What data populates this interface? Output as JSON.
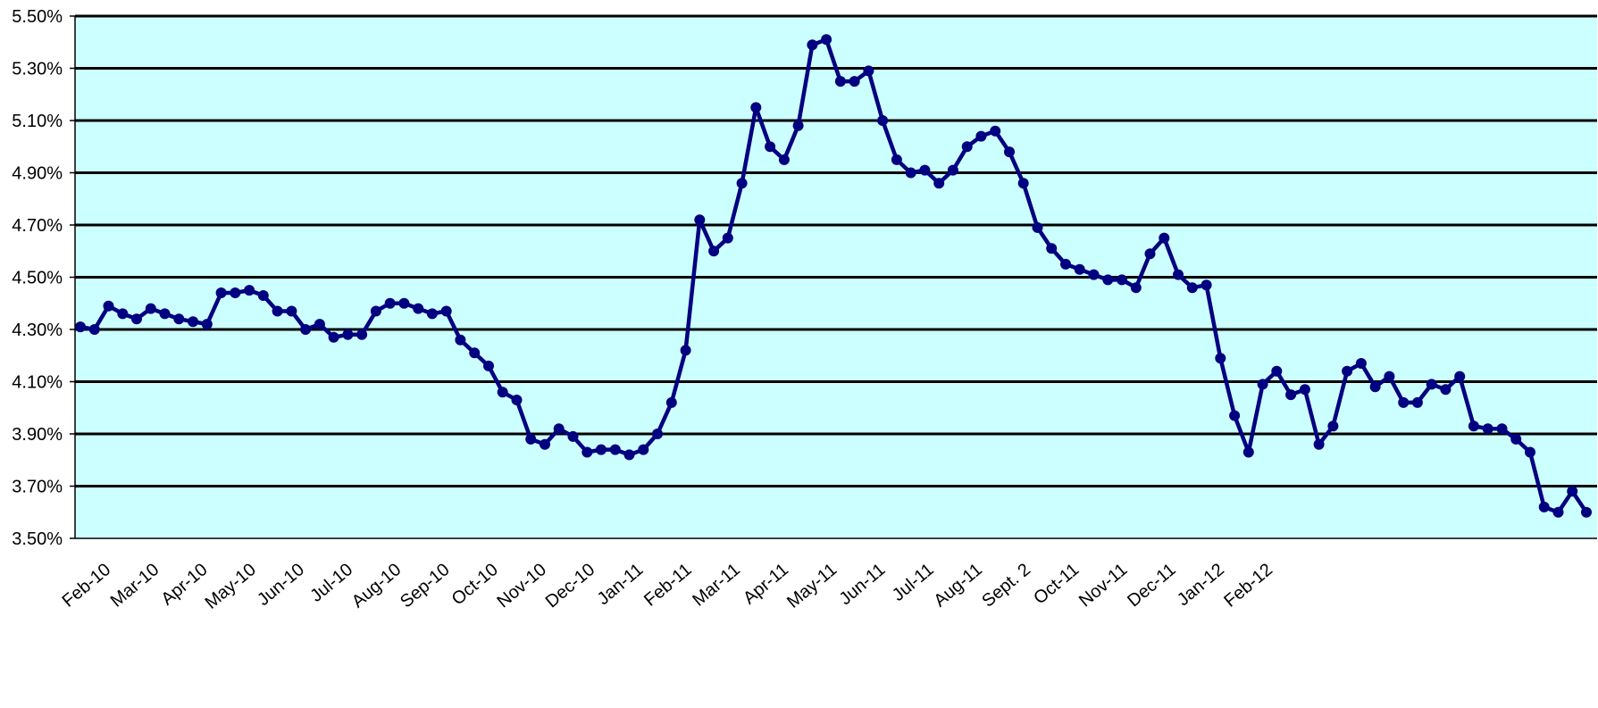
{
  "chart_data": {
    "type": "line",
    "title": "",
    "xlabel": "",
    "ylabel": "",
    "ylim": [
      3.5,
      5.5
    ],
    "y_tick_labels": [
      "5.50%",
      "5.30%",
      "5.10%",
      "4.90%",
      "4.70%",
      "4.50%",
      "4.30%",
      "4.10%",
      "3.90%",
      "3.70%",
      "3.50%"
    ],
    "x_tick_labels": [
      "Feb-10",
      "Mar-10",
      "Apr-10",
      "May-10",
      "Jun-10",
      "Jul-10",
      "Aug-10",
      "Sep-10",
      "Oct-10",
      "Nov-10",
      "Dec-10",
      "Jan-11",
      "Feb-11",
      "Mar-11",
      "Apr-11",
      "May-11",
      "Jun-11",
      "Jul-11",
      "Aug-11",
      "Sept. 2",
      "Oct-11",
      "Nov-11",
      "Dec-11",
      "Jan-12",
      "Feb-12"
    ],
    "grid": "horizontal",
    "plot_background": "#ccffff",
    "series": [
      {
        "color": "#000080",
        "values": [
          4.31,
          4.3,
          4.39,
          4.36,
          4.34,
          4.38,
          4.36,
          4.34,
          4.33,
          4.32,
          4.44,
          4.44,
          4.45,
          4.43,
          4.37,
          4.37,
          4.3,
          4.32,
          4.27,
          4.28,
          4.28,
          4.37,
          4.4,
          4.4,
          4.38,
          4.36,
          4.37,
          4.26,
          4.21,
          4.16,
          4.06,
          4.03,
          3.88,
          3.86,
          3.92,
          3.89,
          3.83,
          3.84,
          3.84,
          3.82,
          3.84,
          3.9,
          4.02,
          4.22,
          4.72,
          4.6,
          4.65,
          4.86,
          5.15,
          5.0,
          4.95,
          5.08,
          5.39,
          5.41,
          5.25,
          5.25,
          5.29,
          5.1,
          4.95,
          4.9,
          4.91,
          4.86,
          4.91,
          5.0,
          5.04,
          5.06,
          4.98,
          4.86,
          4.69,
          4.61,
          4.55,
          4.53,
          4.51,
          4.49,
          4.49,
          4.46,
          4.59,
          4.65,
          4.51,
          4.46,
          4.47,
          4.19,
          3.97,
          3.83,
          4.09,
          4.14,
          4.05,
          4.07,
          3.86,
          3.93,
          4.14,
          4.17,
          4.08,
          4.12,
          4.02,
          4.02,
          4.09,
          4.07,
          4.12,
          3.93,
          3.92,
          3.92,
          3.88,
          3.83,
          3.62,
          3.6,
          3.68,
          3.6
        ]
      }
    ]
  }
}
